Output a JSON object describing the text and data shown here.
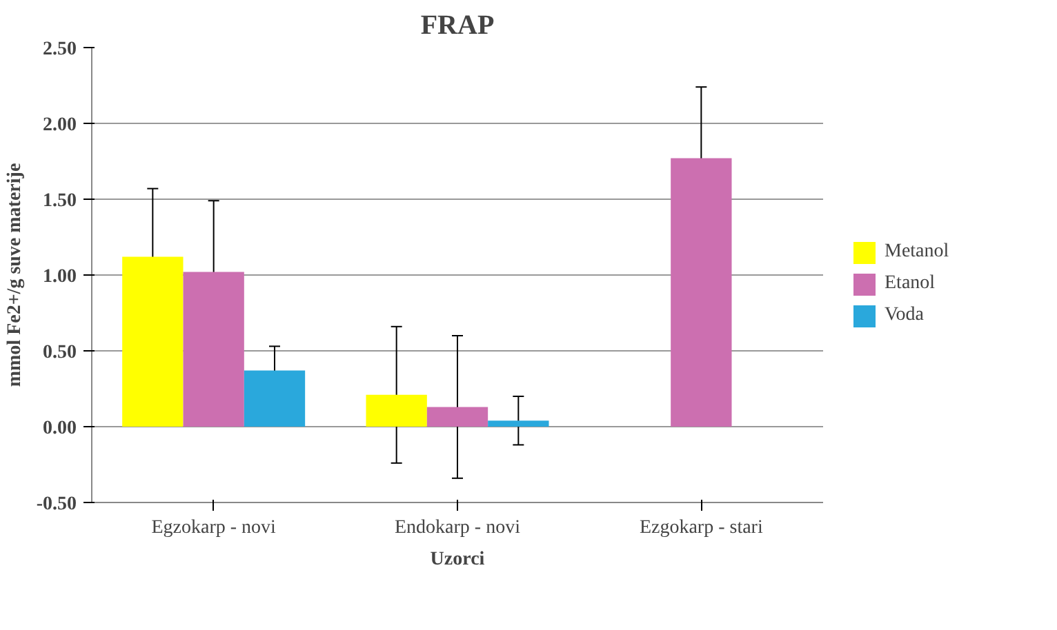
{
  "chart_data": {
    "type": "bar",
    "title": "FRAP",
    "xlabel": "Uzorci",
    "ylabel": "mmol Fe2+/g suve materije",
    "categories": [
      "Egzokarp - novi",
      "Endokarp - novi",
      "Ezgokarp - stari"
    ],
    "series": [
      {
        "name": "Metanol",
        "color": "#ffff00",
        "values": [
          1.12,
          0.21,
          null
        ],
        "errors": [
          0.45,
          0.45,
          null
        ]
      },
      {
        "name": "Etanol",
        "color": "#cc6fb0",
        "values": [
          1.02,
          0.13,
          1.77
        ],
        "errors": [
          0.47,
          0.47,
          0.47
        ]
      },
      {
        "name": "Voda",
        "color": "#2aa8dc",
        "values": [
          0.37,
          0.04,
          null
        ],
        "errors": [
          0.16,
          0.16,
          null
        ]
      }
    ],
    "ylim": [
      -0.5,
      2.5
    ],
    "yticks": [
      {
        "value": -0.5,
        "label": "-0.50"
      },
      {
        "value": 0,
        "label": "0.00"
      },
      {
        "value": 0.5,
        "label": "0.50"
      },
      {
        "value": 1,
        "label": "1.00"
      },
      {
        "value": 1.5,
        "label": "1.50"
      },
      {
        "value": 2,
        "label": "2.00"
      },
      {
        "value": 2.5,
        "label": "2.50"
      }
    ],
    "grid": "y",
    "legend": "right"
  }
}
